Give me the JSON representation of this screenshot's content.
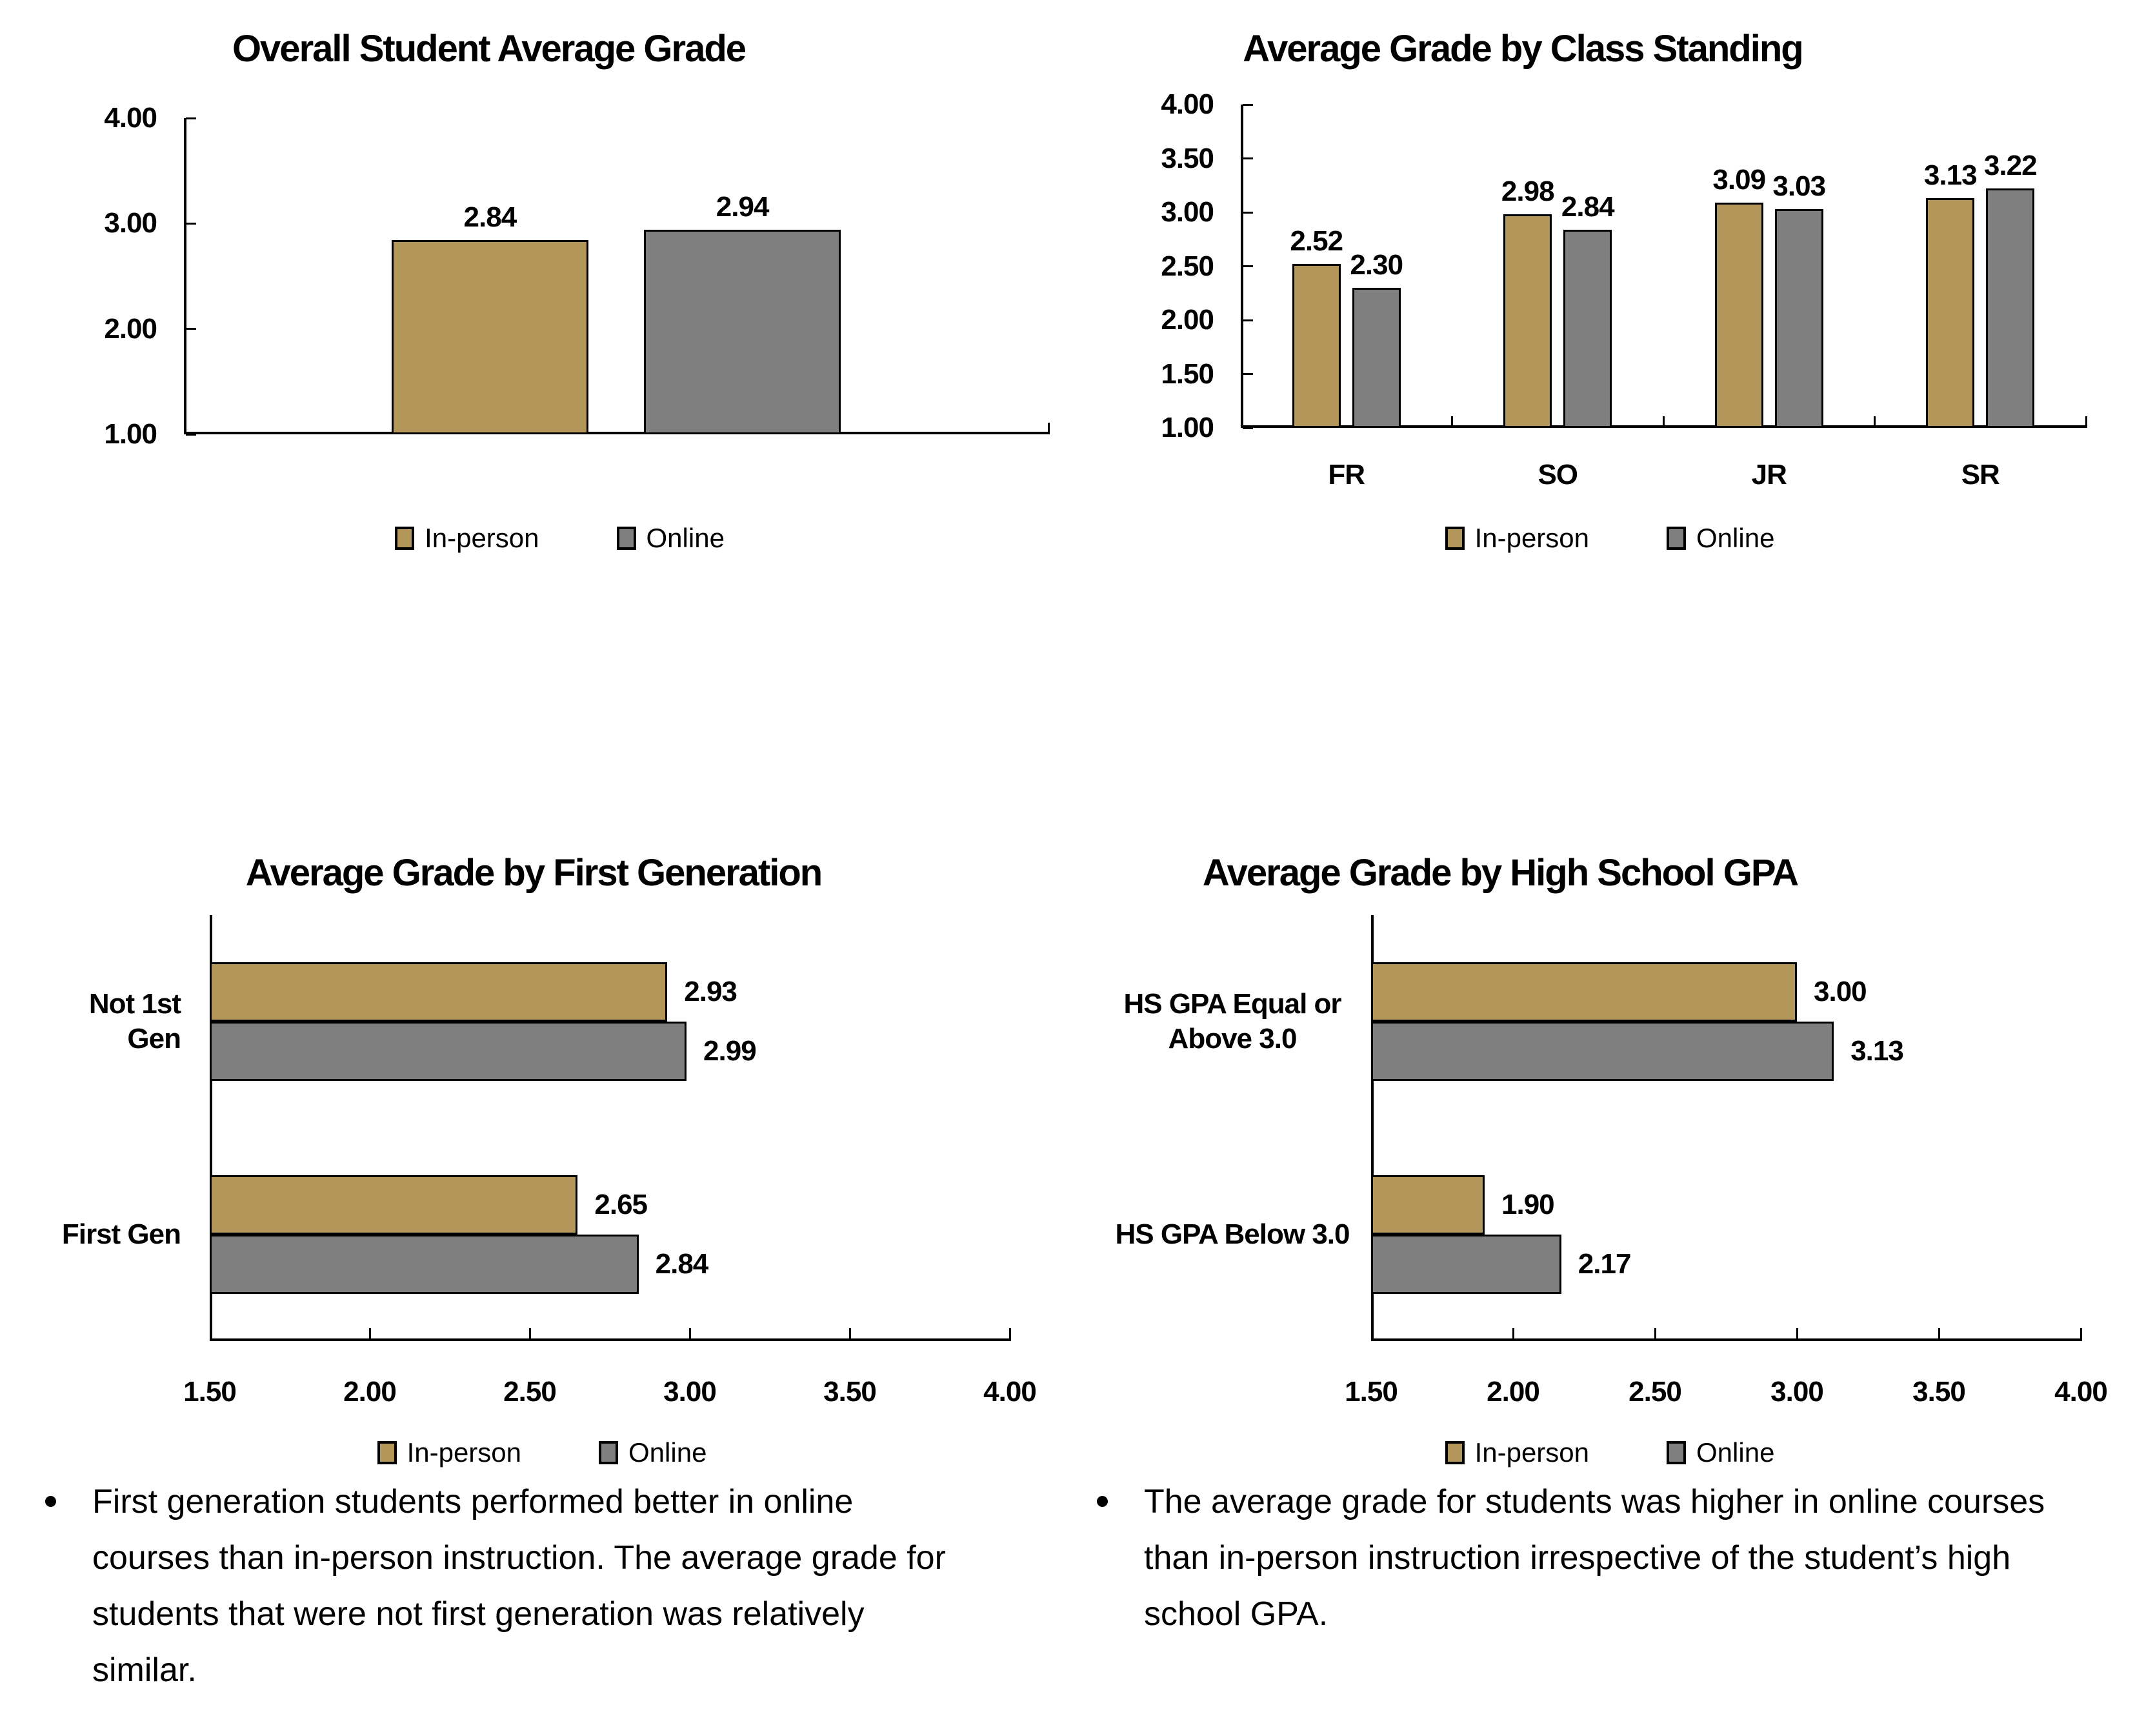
{
  "colors": {
    "in_person": "#b39659",
    "online": "#7f7f7f",
    "bar_border": "#000000",
    "axis": "#000000",
    "text": "#000000",
    "background": "#ffffff"
  },
  "legend": {
    "position": "bottom",
    "items": [
      {
        "label": "In-person",
        "color": "#b39659"
      },
      {
        "label": "Online",
        "color": "#7f7f7f"
      }
    ]
  },
  "chart_data": [
    {
      "type": "bar",
      "orientation": "vertical",
      "title": "Overall Student Average Grade",
      "categories": [
        ""
      ],
      "series": [
        {
          "name": "In-person",
          "color": "#b39659",
          "values": [
            2.84
          ]
        },
        {
          "name": "Online",
          "color": "#7f7f7f",
          "values": [
            2.94
          ]
        }
      ],
      "value_axis": {
        "min": 1.0,
        "max": 4.0,
        "step": 1.0,
        "tick_labels": [
          "1.00",
          "2.00",
          "3.00",
          "4.00"
        ]
      },
      "grid": false,
      "data_labels": true,
      "legend_position": "bottom"
    },
    {
      "type": "bar",
      "orientation": "vertical",
      "title": "Average Grade by Class Standing",
      "categories": [
        "FR",
        "SO",
        "JR",
        "SR"
      ],
      "series": [
        {
          "name": "In-person",
          "color": "#b39659",
          "values": [
            2.52,
            2.98,
            3.09,
            3.13
          ]
        },
        {
          "name": "Online",
          "color": "#7f7f7f",
          "values": [
            2.3,
            2.84,
            3.03,
            3.22
          ]
        }
      ],
      "value_axis": {
        "min": 1.0,
        "max": 4.0,
        "step": 0.5,
        "tick_labels": [
          "1.00",
          "1.50",
          "2.00",
          "2.50",
          "3.00",
          "3.50",
          "4.00"
        ]
      },
      "grid": false,
      "data_labels": true,
      "legend_position": "bottom"
    },
    {
      "type": "bar",
      "orientation": "horizontal",
      "title": "Average Grade by First Generation",
      "categories": [
        "Not 1st Gen",
        "First Gen"
      ],
      "series": [
        {
          "name": "In-person",
          "color": "#b39659",
          "values": [
            2.93,
            2.65
          ]
        },
        {
          "name": "Online",
          "color": "#7f7f7f",
          "values": [
            2.99,
            2.84
          ]
        }
      ],
      "value_axis": {
        "min": 1.5,
        "max": 4.0,
        "step": 0.5,
        "tick_labels": [
          "1.50",
          "2.00",
          "2.50",
          "3.00",
          "3.50",
          "4.00"
        ]
      },
      "grid": false,
      "data_labels": true,
      "legend_position": "bottom"
    },
    {
      "type": "bar",
      "orientation": "horizontal",
      "title": "Average Grade by High School GPA",
      "categories": [
        "HS GPA Equal or\nAbove 3.0",
        "HS GPA Below 3.0"
      ],
      "series": [
        {
          "name": "In-person",
          "color": "#b39659",
          "values": [
            3.0,
            1.9
          ]
        },
        {
          "name": "Online",
          "color": "#7f7f7f",
          "values": [
            3.13,
            2.17
          ]
        }
      ],
      "value_axis": {
        "min": 1.5,
        "max": 4.0,
        "step": 0.5,
        "tick_labels": [
          "1.50",
          "2.00",
          "2.50",
          "3.00",
          "3.50",
          "4.00"
        ]
      },
      "grid": false,
      "data_labels": true,
      "legend_position": "bottom"
    }
  ],
  "bullets": [
    {
      "text": "First generation students performed better in online courses than in-person instruction. The average grade for students that were not first generation was relatively similar."
    },
    {
      "text": "The average grade for students was higher in online courses than in-person instruction irrespective of the student’s high school GPA."
    }
  ]
}
